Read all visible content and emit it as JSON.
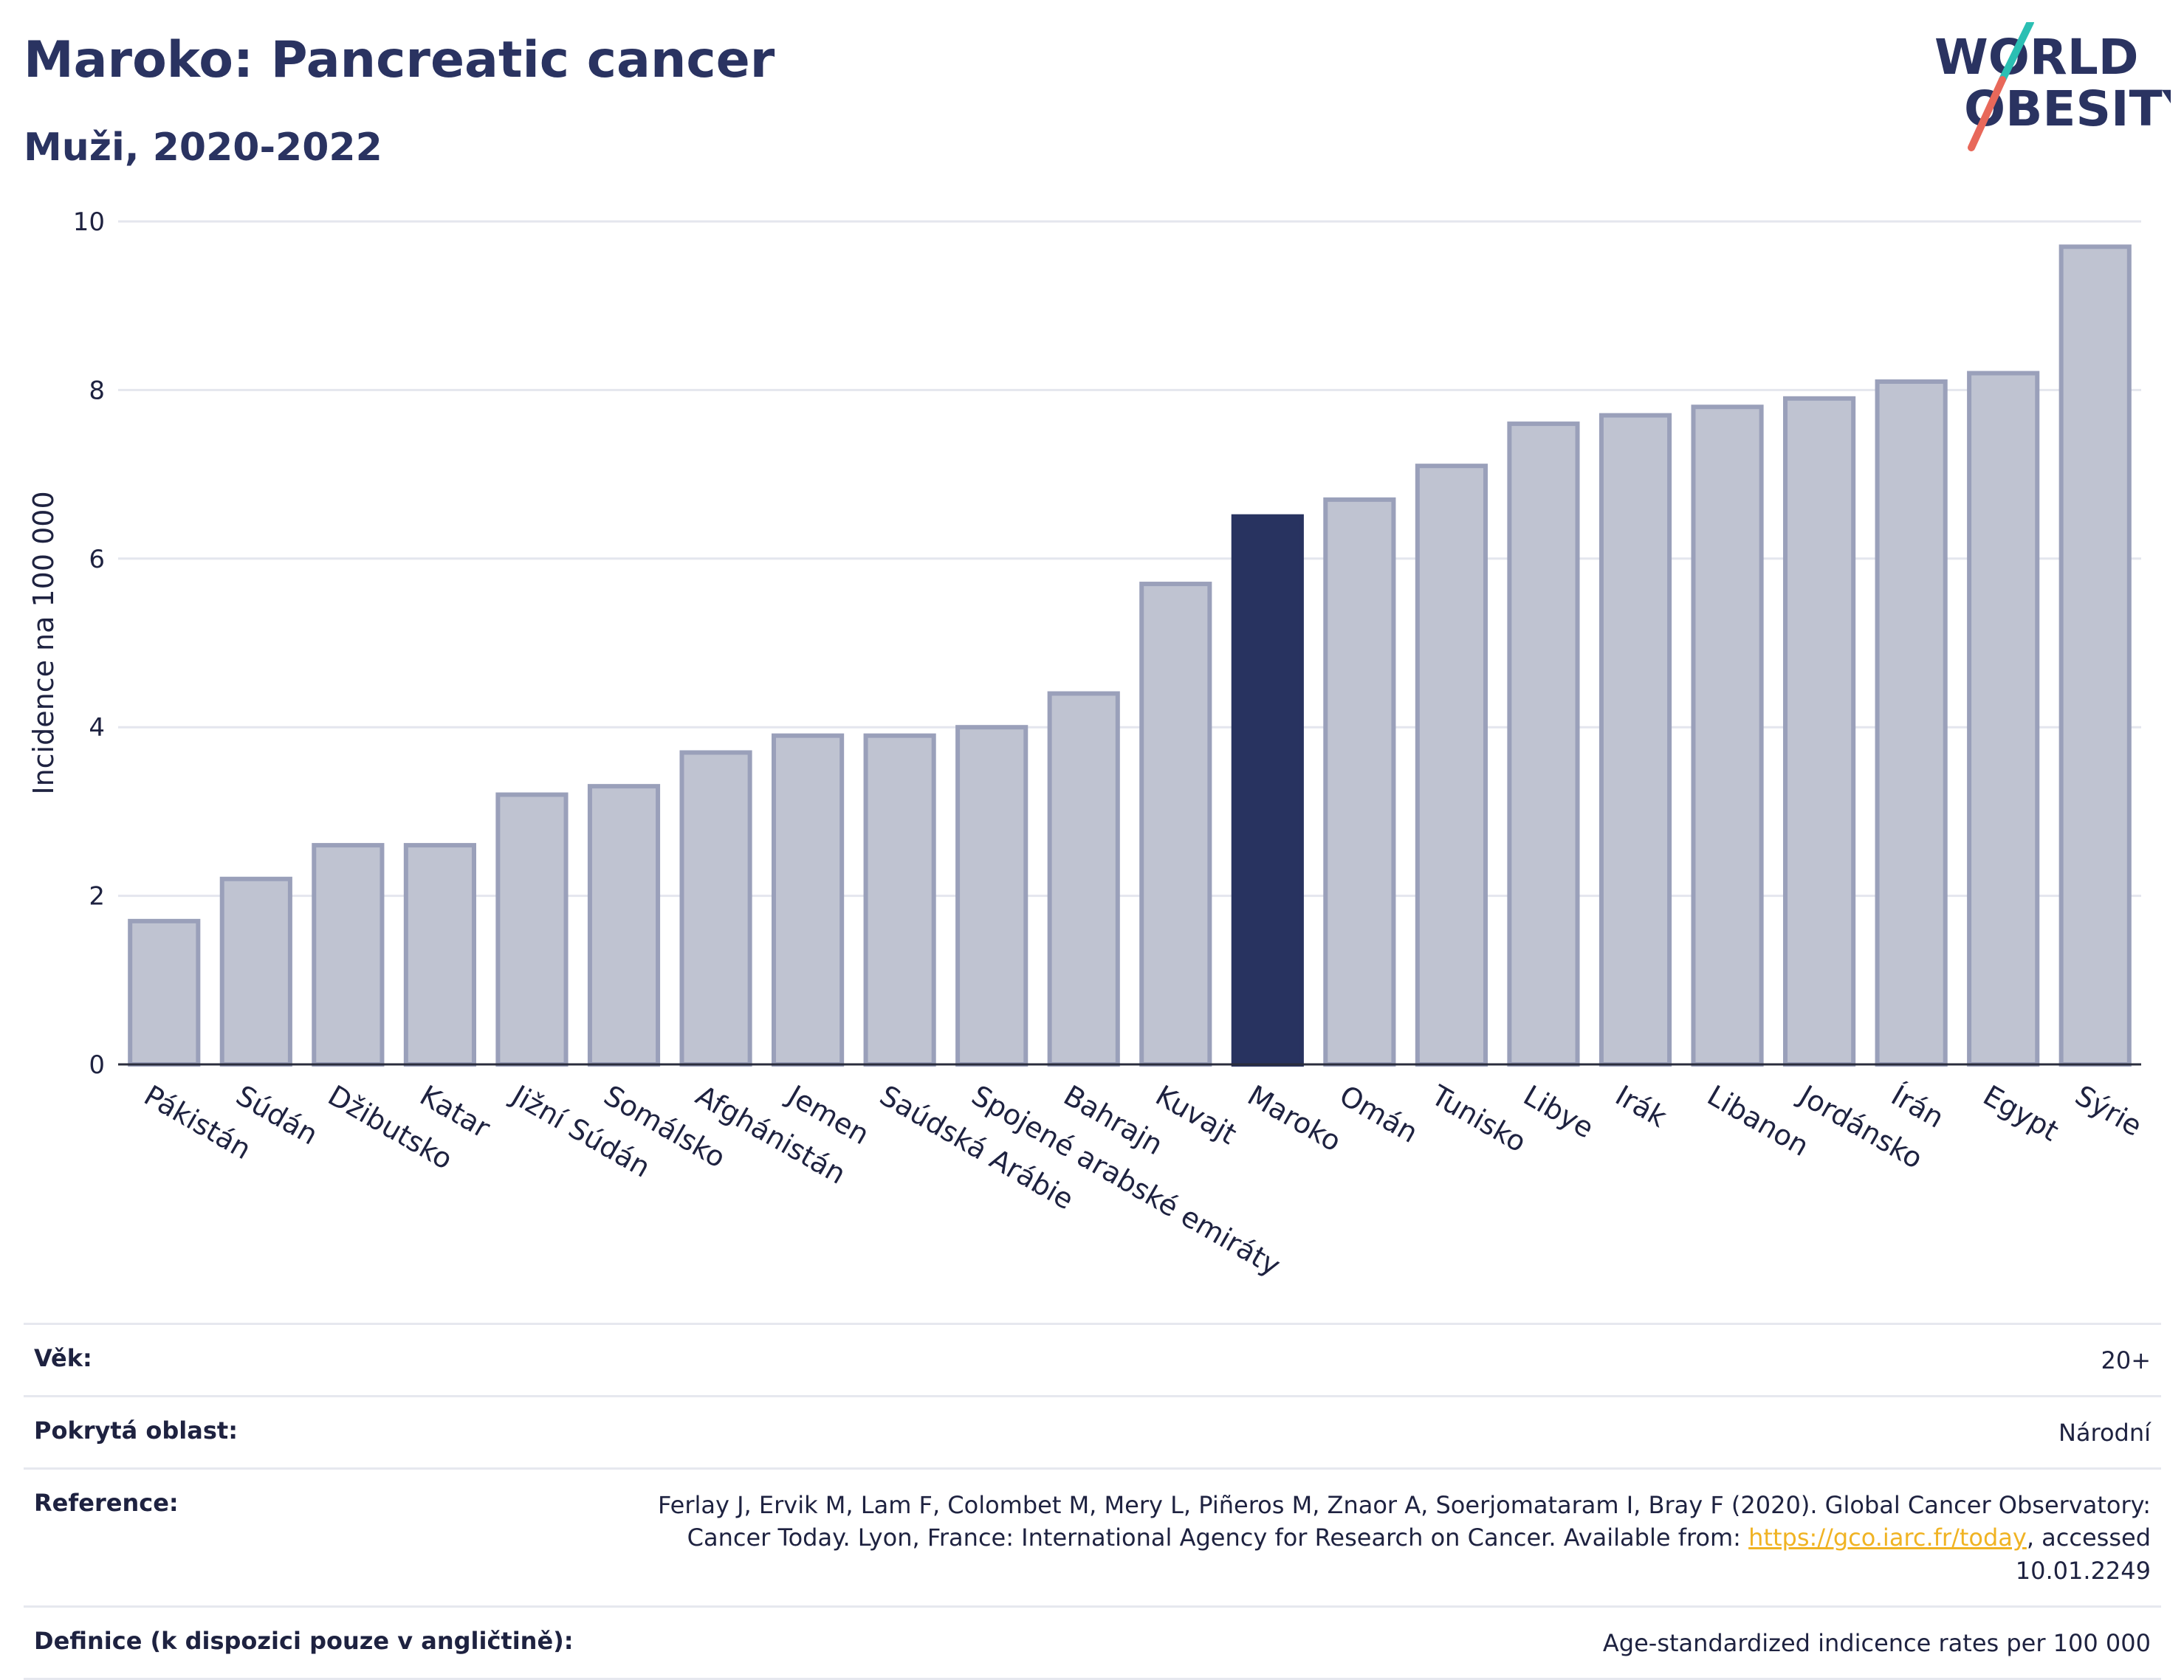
{
  "header": {
    "title": "Maroko: Pancreatic cancer",
    "subtitle": "Muži, 2020-2022"
  },
  "logo": {
    "line1": "WORLD",
    "line2": "OBESITY",
    "icon": "world-obesity-logo"
  },
  "colors": {
    "highlight": "#283360",
    "bar_fill": "#bfc3d1",
    "bar_stroke": "#9aa0ba",
    "title": "#2a3361",
    "link": "#f0b323",
    "logo_teal": "#2bbfb3",
    "logo_coral": "#e8685a"
  },
  "chart_data": {
    "type": "bar",
    "title": "Maroko: Pancreatic cancer",
    "subtitle": "Muži, 2020-2022",
    "xlabel": "",
    "ylabel": "Incidence na 100 000",
    "ylim": [
      0,
      10
    ],
    "yticks": [
      0,
      2,
      4,
      6,
      8,
      10
    ],
    "grid": true,
    "highlight": "Maroko",
    "categories": [
      "Pákistán",
      "Súdán",
      "Džibutsko",
      "Katar",
      "Jižní Súdán",
      "Somálsko",
      "Afghánistán",
      "Jemen",
      "Saúdská Arábie",
      "Spojené arabské emiráty",
      "Bahrajn",
      "Kuvajt",
      "Maroko",
      "Omán",
      "Tunisko",
      "Libye",
      "Irák",
      "Libanon",
      "Jordánsko",
      "Írán",
      "Egypt",
      "Sýrie"
    ],
    "values": [
      1.7,
      2.2,
      2.6,
      2.6,
      3.2,
      3.3,
      3.7,
      3.9,
      3.9,
      4.0,
      4.4,
      5.7,
      6.5,
      6.7,
      7.1,
      7.6,
      7.7,
      7.8,
      7.9,
      8.1,
      8.2,
      9.7
    ]
  },
  "info": {
    "age_label": "Věk:",
    "age_value": "20+",
    "coverage_label": "Pokrytá oblast:",
    "coverage_value": "Národní",
    "reference_label": "Reference:",
    "reference_text": "Ferlay J, Ervik M, Lam F, Colombet M, Mery L, Piñeros M, Znaor A, Soerjomataram I, Bray F (2020). Global Cancer Observatory: Cancer Today. Lyon, France: International Agency for Research on Cancer. Available from:",
    "reference_link": "https://gco.iarc.fr/today",
    "reference_suffix": ", accessed 10.01.2249",
    "definition_label": "Definice (k dispozici pouze v angličtině):",
    "definition_value": "Age-standardized indicence rates per 100 000"
  }
}
